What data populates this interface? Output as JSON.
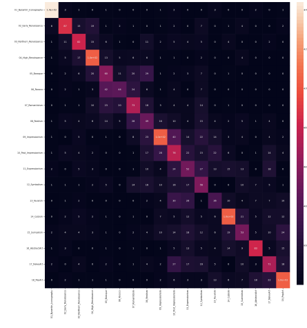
{
  "chart_data": {
    "type": "heatmap",
    "title": "",
    "xlabel": "",
    "ylabel": "",
    "row_labels": [
      "01_Byzantin_Iconography",
      "02_Early_Renaissance",
      "03_Northern_Renaissance",
      "04_High_Renaissance",
      "05_Baroque",
      "06_Rococo",
      "07_Romanticism",
      "08_Realism",
      "09_Impressionism",
      "10_Post_Impressionism",
      "11_Expressionism",
      "12_Symbolism",
      "13_Fauvism",
      "14_Cubism",
      "15_Surrealism",
      "16_AbstractArt",
      "17_NaiveArt",
      "18_PopArt"
    ],
    "col_labels": [
      "01_Byzantin_Iconography",
      "02_Early_Renaissance",
      "03_Northern_Renaissance",
      "04_High_Renaissance",
      "05_Baroque",
      "06_Rococo",
      "07_Romanticism",
      "08_Realism",
      "09_Impressionism",
      "10_Post_Impressionism",
      "11_Expressionism",
      "12_Symbolism",
      "13_Fauvism",
      "14_Cubism",
      "15_Surrealism",
      "16_AbstractArt",
      "17_NaiveArt",
      "18_PopArt"
    ],
    "values": [
      [
        144,
        3,
        1,
        0,
        1,
        0,
        0,
        0,
        1,
        2,
        0,
        0,
        3,
        0,
        0,
        2,
        0,
        1
      ],
      [
        6,
        87,
        15,
        19,
        1,
        2,
        1,
        0,
        1,
        2,
        0,
        7,
        0,
        1,
        4,
        0,
        0,
        2
      ],
      [
        1,
        11,
        82,
        15,
        6,
        1,
        0,
        11,
        2,
        5,
        4,
        5,
        0,
        4,
        0,
        0,
        2,
        0
      ],
      [
        1,
        5,
        17,
        104,
        13,
        5,
        6,
        6,
        1,
        1,
        0,
        2,
        0,
        0,
        4,
        0,
        0,
        0
      ],
      [
        0,
        2,
        6,
        20,
        60,
        11,
        20,
        29,
        1,
        2,
        3,
        7,
        0,
        1,
        0,
        0,
        0,
        0
      ],
      [
        0,
        2,
        1,
        3,
        42,
        44,
        24,
        6,
        1,
        4,
        0,
        7,
        0,
        0,
        0,
        0,
        0,
        0
      ],
      [
        0,
        1,
        1,
        10,
        23,
        20,
        73,
        18,
        3,
        4,
        4,
        14,
        0,
        1,
        0,
        0,
        0,
        0
      ],
      [
        1,
        5,
        4,
        6,
        14,
        5,
        28,
        49,
        16,
        10,
        4,
        15,
        4,
        2,
        5,
        1,
        4,
        0
      ],
      [
        1,
        0,
        5,
        0,
        1,
        0,
        8,
        23,
        104,
        40,
        14,
        22,
        14,
        3,
        4,
        0,
        4,
        2
      ],
      [
        1,
        5,
        4,
        2,
        0,
        0,
        1,
        17,
        28,
        76,
        22,
        15,
        22,
        6,
        0,
        1,
        14,
        4
      ],
      [
        2,
        0,
        5,
        3,
        0,
        0,
        1,
        10,
        4,
        24,
        52,
        27,
        13,
        15,
        13,
        0,
        18,
        0
      ],
      [
        1,
        1,
        1,
        2,
        5,
        0,
        14,
        16,
        10,
        16,
        17,
        56,
        0,
        0,
        10,
        7,
        5,
        1
      ],
      [
        0,
        1,
        2,
        0,
        0,
        0,
        0,
        2,
        4,
        30,
        26,
        1,
        36,
        10,
        4,
        7,
        7,
        10
      ],
      [
        0,
        2,
        5,
        2,
        1,
        0,
        1,
        0,
        7,
        5,
        12,
        5,
        6,
        104,
        21,
        5,
        12,
        12
      ],
      [
        2,
        4,
        4,
        3,
        1,
        0,
        2,
        4,
        10,
        14,
        18,
        12,
        6,
        19,
        53,
        5,
        10,
        24
      ],
      [
        1,
        3,
        0,
        0,
        1,
        0,
        1,
        0,
        1,
        5,
        13,
        5,
        4,
        14,
        9,
        83,
        5,
        15
      ],
      [
        2,
        0,
        4,
        0,
        2,
        0,
        1,
        4,
        2,
        27,
        17,
        16,
        5,
        0,
        10,
        3,
        71,
        18
      ],
      [
        0,
        2,
        1,
        1,
        1,
        0,
        0,
        0,
        2,
        6,
        3,
        3,
        13,
        6,
        7,
        18,
        22,
        104
      ]
    ],
    "cell_labels": [
      [
        "1.4e+02",
        "3",
        "1",
        "0",
        "1",
        "0",
        "0",
        "0",
        "1",
        "2",
        "0",
        "0",
        "3",
        "0",
        "0",
        "2",
        "0",
        "1"
      ],
      [
        "6",
        "87",
        "15",
        "19",
        "1",
        "2",
        "1",
        "0",
        "1",
        "2",
        "0",
        "7",
        "0",
        "1",
        "4",
        "0",
        "0",
        "2"
      ],
      [
        "1",
        "11",
        "82",
        "15",
        "6",
        "1",
        "0",
        "11",
        "2",
        "5",
        "4",
        "5",
        "0",
        "4",
        "0",
        "0",
        "2",
        "0"
      ],
      [
        "1",
        "5",
        "17",
        "1.0e+02",
        "13",
        "5",
        "6",
        "6",
        "1",
        "1",
        "0",
        "2",
        "0",
        "0",
        "4",
        "0",
        "0",
        "0"
      ],
      [
        "0",
        "2",
        "6",
        "20",
        "60",
        "11",
        "20",
        "29",
        "1",
        "2",
        "3",
        "7",
        "0",
        "1",
        "0",
        "0",
        "0",
        "0"
      ],
      [
        "0",
        "2",
        "1",
        "3",
        "42",
        "44",
        "24",
        "6",
        "1",
        "4",
        "0",
        "7",
        "0",
        "0",
        "0",
        "0",
        "0",
        "0"
      ],
      [
        "0",
        "1",
        "1",
        "10",
        "23",
        "20",
        "73",
        "18",
        "3",
        "4",
        "4",
        "14",
        "0",
        "1",
        "0",
        "0",
        "0",
        "0"
      ],
      [
        "1",
        "5",
        "4",
        "6",
        "14",
        "5",
        "28",
        "49",
        "16",
        "10",
        "4",
        "15",
        "4",
        "2",
        "5",
        "1",
        "4",
        "0"
      ],
      [
        "1",
        "0",
        "5",
        "0",
        "1",
        "0",
        "8",
        "23",
        "1.0e+02",
        "40",
        "14",
        "22",
        "14",
        "3",
        "4",
        "0",
        "4",
        "2"
      ],
      [
        "1",
        "5",
        "4",
        "2",
        "0",
        "0",
        "1",
        "17",
        "28",
        "76",
        "22",
        "15",
        "22",
        "6",
        "0",
        "1",
        "14",
        "4"
      ],
      [
        "2",
        "0",
        "5",
        "3",
        "0",
        "0",
        "1",
        "10",
        "4",
        "24",
        "52",
        "27",
        "13",
        "15",
        "13",
        "0",
        "18",
        "0"
      ],
      [
        "1",
        "1",
        "1",
        "2",
        "5",
        "0",
        "14",
        "16",
        "10",
        "16",
        "17",
        "56",
        "0",
        "0",
        "10",
        "7",
        "5",
        "1"
      ],
      [
        "0",
        "1",
        "2",
        "0",
        "0",
        "0",
        "0",
        "2",
        "4",
        "30",
        "26",
        "1",
        "36",
        "10",
        "4",
        "7",
        "7",
        "10"
      ],
      [
        "0",
        "2",
        "5",
        "2",
        "1",
        "0",
        "1",
        "0",
        "7",
        "5",
        "12",
        "5",
        "6",
        "1.0e+02",
        "21",
        "5",
        "12",
        "12"
      ],
      [
        "2",
        "4",
        "4",
        "3",
        "1",
        "0",
        "2",
        "4",
        "10",
        "14",
        "18",
        "12",
        "6",
        "19",
        "53",
        "5",
        "10",
        "24"
      ],
      [
        "1",
        "3",
        "0",
        "0",
        "1",
        "0",
        "1",
        "0",
        "1",
        "5",
        "13",
        "5",
        "4",
        "14",
        "9",
        "83",
        "5",
        "15"
      ],
      [
        "2",
        "0",
        "4",
        "0",
        "2",
        "0",
        "1",
        "4",
        "2",
        "27",
        "17",
        "16",
        "5",
        "0",
        "10",
        "3",
        "71",
        "18"
      ],
      [
        "0",
        "2",
        "1",
        "1",
        "1",
        "0",
        "0",
        "0",
        "2",
        "6",
        "3",
        "3",
        "13",
        "6",
        "7",
        "18",
        "22",
        "1.0e+02"
      ]
    ],
    "colorbar": {
      "min": 0,
      "max": 144,
      "ticks": [
        20,
        40,
        60,
        80,
        100,
        120,
        140
      ],
      "colormap": "rocket",
      "low_color": "#03051a",
      "high_color": "#faebdd"
    }
  }
}
